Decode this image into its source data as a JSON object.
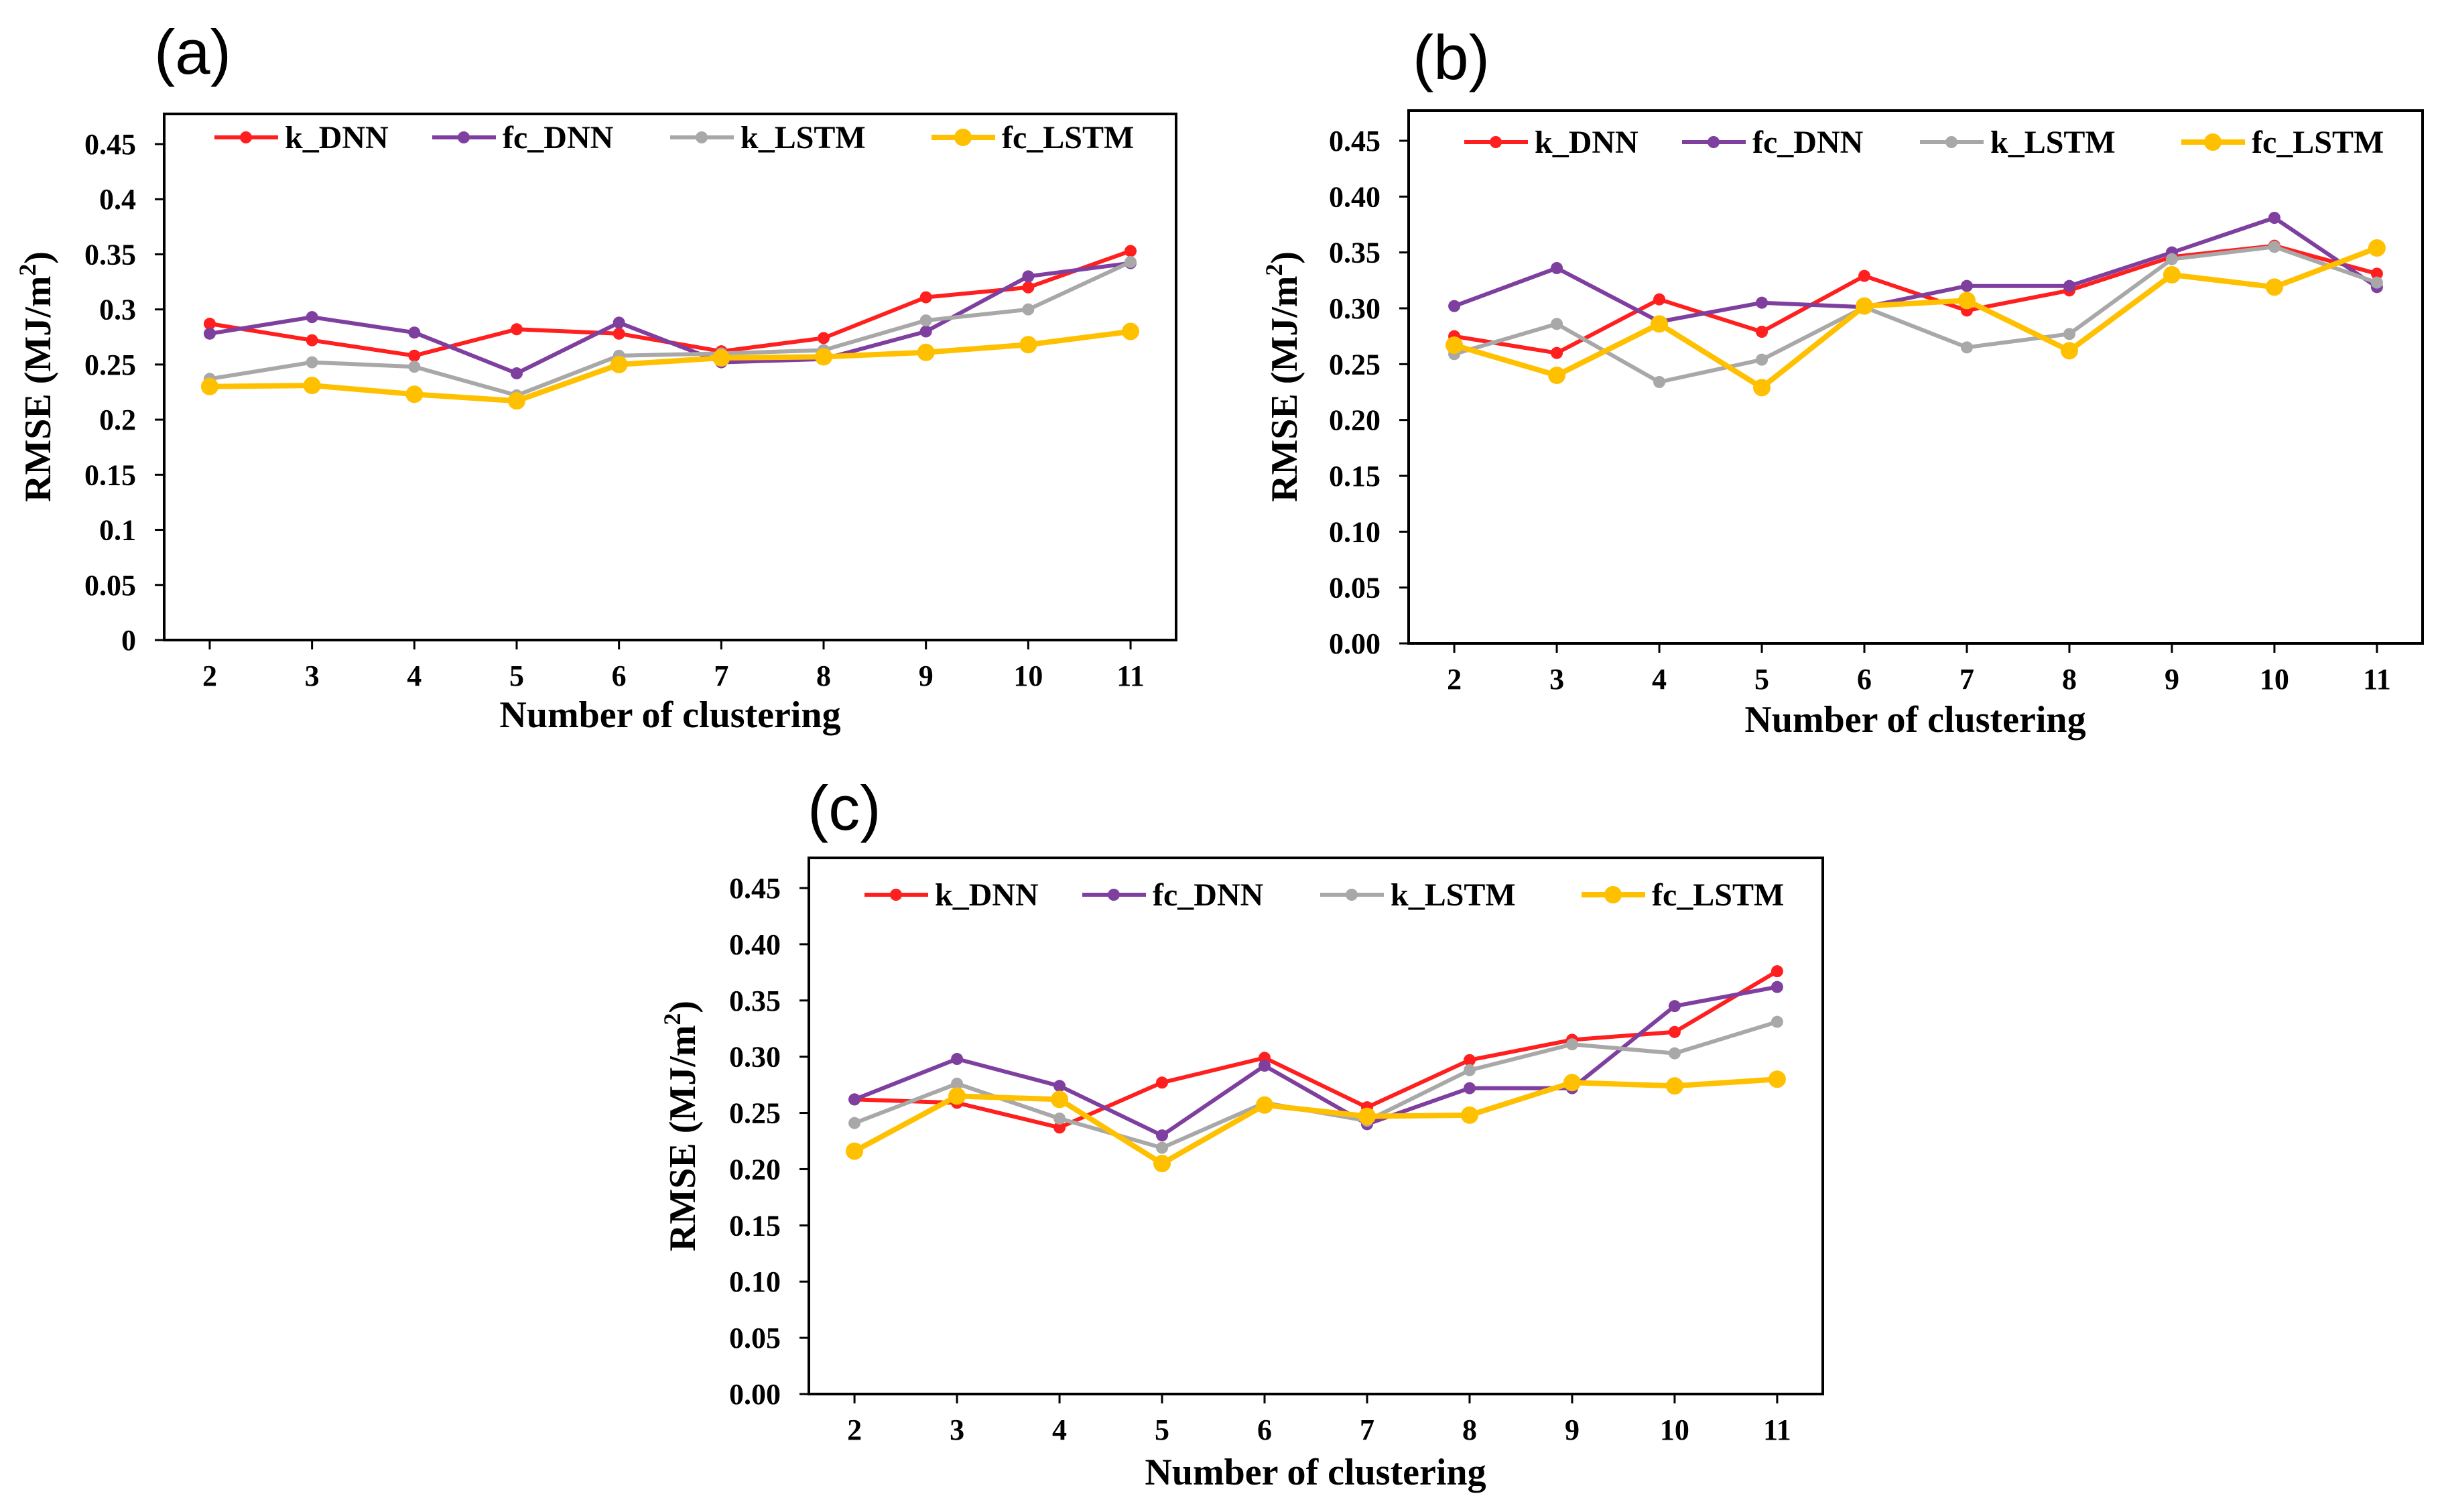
{
  "colors": {
    "k_DNN": "#ff1f1f",
    "fc_DNN": "#7f3f9f",
    "k_LSTM": "#a8a8a8",
    "fc_LSTM": "#ffc000"
  },
  "chart_data": [
    {
      "type": "line",
      "panel_label": "(a)",
      "xlabel": "Number of clustering",
      "ylabel_main": "RMSE (MJ/m",
      "ylabel_sup": "2",
      "ylabel_close": ")",
      "x": [
        2,
        3,
        4,
        5,
        6,
        7,
        8,
        9,
        10,
        11
      ],
      "x_tick_labels": [
        "2",
        "3",
        "4",
        "5",
        "6",
        "7",
        "8",
        "9",
        "10",
        "11"
      ],
      "ylim": [
        0,
        0.45
      ],
      "y_ticks": [
        0,
        0.05,
        0.1,
        0.15,
        0.2,
        0.25,
        0.3,
        0.35,
        0.4,
        0.45
      ],
      "y_tick_labels": [
        "0",
        "0.05",
        "0.1",
        "0.15",
        "0.2",
        "0.25",
        "0.3",
        "0.35",
        "0.4",
        "0.45"
      ],
      "grid": false,
      "legend_position": "top",
      "series": [
        {
          "name": "k_DNN",
          "color": "#ff1f1f",
          "values": [
            0.287,
            0.272,
            0.258,
            0.282,
            0.278,
            0.262,
            0.274,
            0.311,
            0.32,
            0.353
          ]
        },
        {
          "name": "fc_DNN",
          "color": "#7f3f9f",
          "values": [
            0.278,
            0.293,
            0.279,
            0.242,
            0.288,
            0.252,
            0.255,
            0.28,
            0.33,
            0.342
          ]
        },
        {
          "name": "k_LSTM",
          "color": "#a8a8a8",
          "values": [
            0.237,
            0.252,
            0.248,
            0.222,
            0.258,
            0.26,
            0.263,
            0.29,
            0.3,
            0.343
          ]
        },
        {
          "name": "fc_LSTM",
          "color": "#ffc000",
          "values": [
            0.23,
            0.231,
            0.223,
            0.217,
            0.25,
            0.256,
            0.257,
            0.261,
            0.268,
            0.28
          ]
        }
      ]
    },
    {
      "type": "line",
      "panel_label": "(b)",
      "xlabel": "Number of clustering",
      "ylabel_main": "RMSE (MJ/m",
      "ylabel_sup": "2",
      "ylabel_close": ")",
      "x": [
        2,
        3,
        4,
        5,
        6,
        7,
        8,
        9,
        10,
        11
      ],
      "x_tick_labels": [
        "2",
        "3",
        "4",
        "5",
        "6",
        "7",
        "8",
        "9",
        "10",
        "11"
      ],
      "ylim": [
        0,
        0.45
      ],
      "y_ticks": [
        0,
        0.05,
        0.1,
        0.15,
        0.2,
        0.25,
        0.3,
        0.35,
        0.4,
        0.45
      ],
      "y_tick_labels": [
        "0.00",
        "0.05",
        "0.10",
        "0.15",
        "0.20",
        "0.25",
        "0.30",
        "0.35",
        "0.40",
        "0.45"
      ],
      "grid": false,
      "legend_position": "top",
      "series": [
        {
          "name": "k_DNN",
          "color": "#ff1f1f",
          "values": [
            0.275,
            0.26,
            0.308,
            0.279,
            0.329,
            0.298,
            0.316,
            0.346,
            0.356,
            0.331
          ]
        },
        {
          "name": "fc_DNN",
          "color": "#7f3f9f",
          "values": [
            0.302,
            0.336,
            0.288,
            0.305,
            0.301,
            0.32,
            0.32,
            0.35,
            0.381,
            0.319
          ]
        },
        {
          "name": "k_LSTM",
          "color": "#a8a8a8",
          "values": [
            0.259,
            0.286,
            0.234,
            0.254,
            0.301,
            0.265,
            0.277,
            0.344,
            0.355,
            0.323
          ]
        },
        {
          "name": "fc_LSTM",
          "color": "#ffc000",
          "values": [
            0.267,
            0.24,
            0.286,
            0.229,
            0.302,
            0.307,
            0.262,
            0.33,
            0.319,
            0.354
          ]
        }
      ]
    },
    {
      "type": "line",
      "panel_label": "(c)",
      "xlabel": "Number of clustering",
      "ylabel_main": "RMSE (MJ/m",
      "ylabel_sup": "2",
      "ylabel_close": ")",
      "x": [
        2,
        3,
        4,
        5,
        6,
        7,
        8,
        9,
        10,
        11
      ],
      "x_tick_labels": [
        "2",
        "3",
        "4",
        "5",
        "6",
        "7",
        "8",
        "9",
        "10",
        "11"
      ],
      "ylim": [
        0,
        0.45
      ],
      "y_ticks": [
        0,
        0.05,
        0.1,
        0.15,
        0.2,
        0.25,
        0.3,
        0.35,
        0.4,
        0.45
      ],
      "y_tick_labels": [
        "0.00",
        "0.05",
        "0.10",
        "0.15",
        "0.20",
        "0.25",
        "0.30",
        "0.35",
        "0.40",
        "0.45"
      ],
      "grid": false,
      "legend_position": "top",
      "series": [
        {
          "name": "k_DNN",
          "color": "#ff1f1f",
          "values": [
            0.262,
            0.259,
            0.237,
            0.277,
            0.299,
            0.255,
            0.297,
            0.315,
            0.322,
            0.376
          ]
        },
        {
          "name": "fc_DNN",
          "color": "#7f3f9f",
          "values": [
            0.262,
            0.298,
            0.274,
            0.23,
            0.292,
            0.24,
            0.272,
            0.272,
            0.345,
            0.362
          ]
        },
        {
          "name": "k_LSTM",
          "color": "#a8a8a8",
          "values": [
            0.241,
            0.276,
            0.245,
            0.219,
            0.259,
            0.243,
            0.288,
            0.311,
            0.303,
            0.331
          ]
        },
        {
          "name": "fc_LSTM",
          "color": "#ffc000",
          "values": [
            0.216,
            0.265,
            0.262,
            0.205,
            0.257,
            0.247,
            0.248,
            0.277,
            0.274,
            0.28
          ]
        }
      ]
    }
  ]
}
